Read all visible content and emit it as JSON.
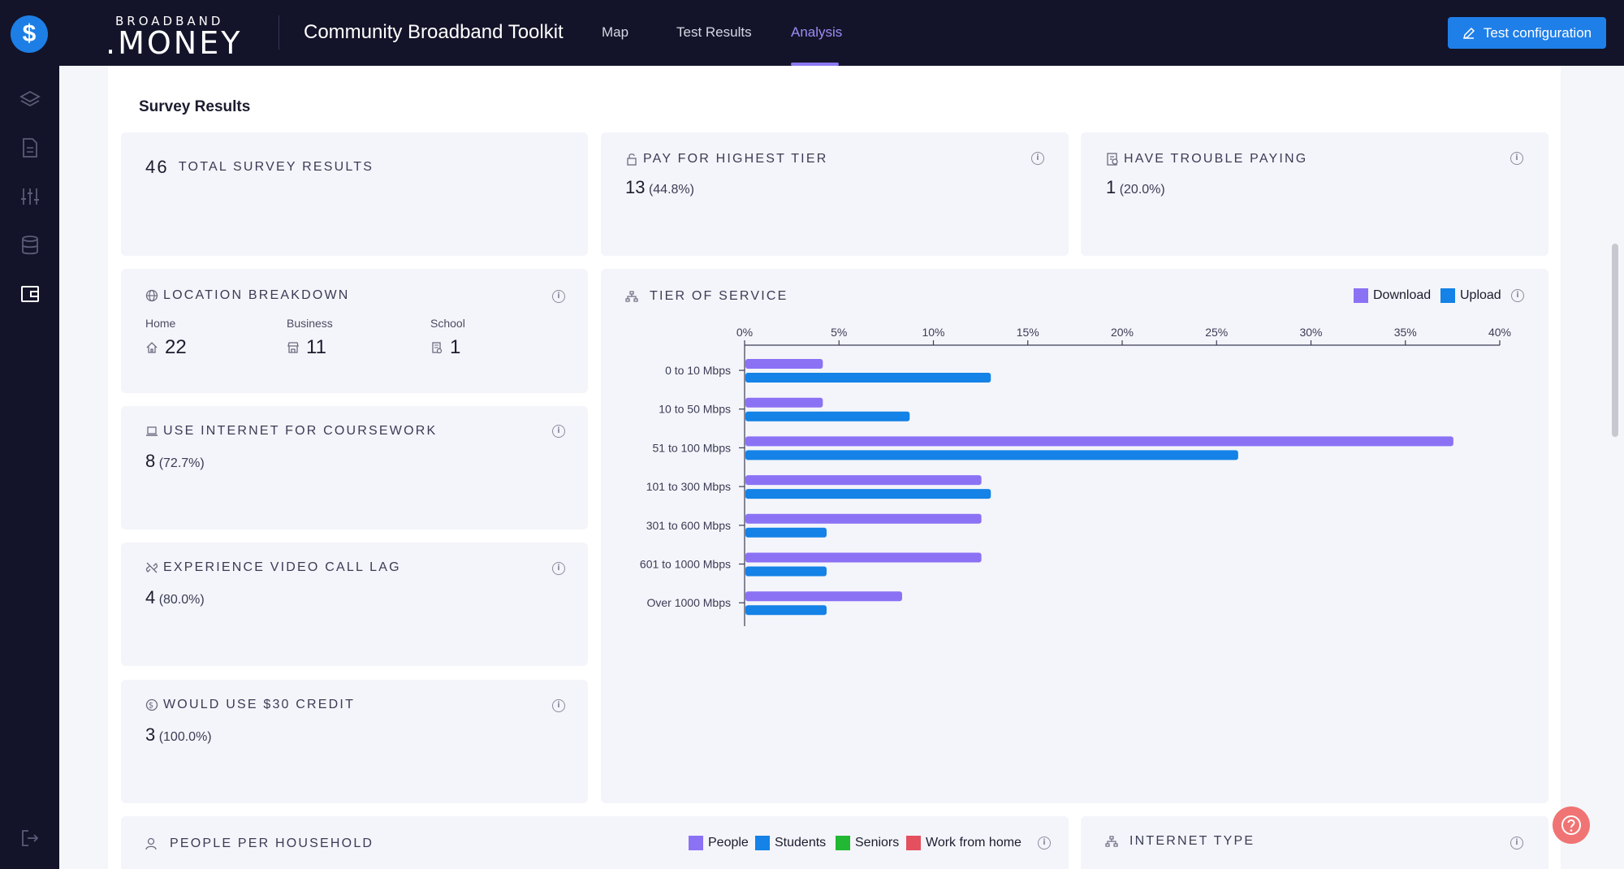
{
  "header": {
    "logo_top": "BROADBAND",
    "logo_bottom": ".MONEY",
    "app_title": "Community Broadband Toolkit",
    "nav": [
      "Map",
      "Test Results",
      "Analysis"
    ],
    "active_nav": "Analysis",
    "config_button": "Test configuration"
  },
  "section_title": "Survey Results",
  "cards": {
    "total": {
      "value": "46",
      "label": "TOTAL SURVEY RESULTS"
    },
    "highest_tier": {
      "label": "PAY FOR HIGHEST TIER",
      "value": "13",
      "pct": "(44.8%)"
    },
    "trouble_paying": {
      "label": "HAVE TROUBLE PAYING",
      "value": "1",
      "pct": "(20.0%)"
    },
    "location": {
      "label": "LOCATION BREAKDOWN",
      "items": [
        {
          "label": "Home",
          "value": "22"
        },
        {
          "label": "Business",
          "value": "11"
        },
        {
          "label": "School",
          "value": "1"
        }
      ]
    },
    "coursework": {
      "label": "USE INTERNET FOR COURSEWORK",
      "value": "8",
      "pct": "(72.7%)"
    },
    "video_lag": {
      "label": "EXPERIENCE VIDEO CALL LAG",
      "value": "4",
      "pct": "(80.0%)"
    },
    "credit": {
      "label": "WOULD USE $30 CREDIT",
      "value": "3",
      "pct": "(100.0%)"
    },
    "household": {
      "label": "PEOPLE PER HOUSEHOLD",
      "legend": [
        "People",
        "Students",
        "Seniors",
        "Work from home"
      ]
    },
    "internet_type": {
      "label": "INTERNET TYPE"
    }
  },
  "colors": {
    "download": "#8b72f5",
    "upload": "#1482e6",
    "people": "#8b72f5",
    "students": "#1482e6",
    "seniors": "#22b833",
    "work_from_home": "#e5505f"
  },
  "chart_data": {
    "type": "bar",
    "orientation": "horizontal",
    "title": "TIER OF SERVICE",
    "categories": [
      "0 to 10 Mbps",
      "10 to 50 Mbps",
      "51 to 100 Mbps",
      "101 to 300 Mbps",
      "301 to 600 Mbps",
      "601 to 1000 Mbps",
      "Over 1000 Mbps"
    ],
    "series": [
      {
        "name": "Download",
        "values": [
          4.1,
          4.1,
          37.5,
          12.5,
          12.5,
          12.5,
          8.3
        ]
      },
      {
        "name": "Upload",
        "values": [
          13.0,
          8.7,
          26.1,
          13.0,
          4.3,
          4.3,
          4.3
        ]
      }
    ],
    "x_ticks": [
      "0%",
      "5%",
      "10%",
      "15%",
      "20%",
      "25%",
      "30%",
      "35%",
      "40%"
    ],
    "xlim": [
      0,
      40
    ],
    "legend_position": "top-right",
    "grid": false
  }
}
